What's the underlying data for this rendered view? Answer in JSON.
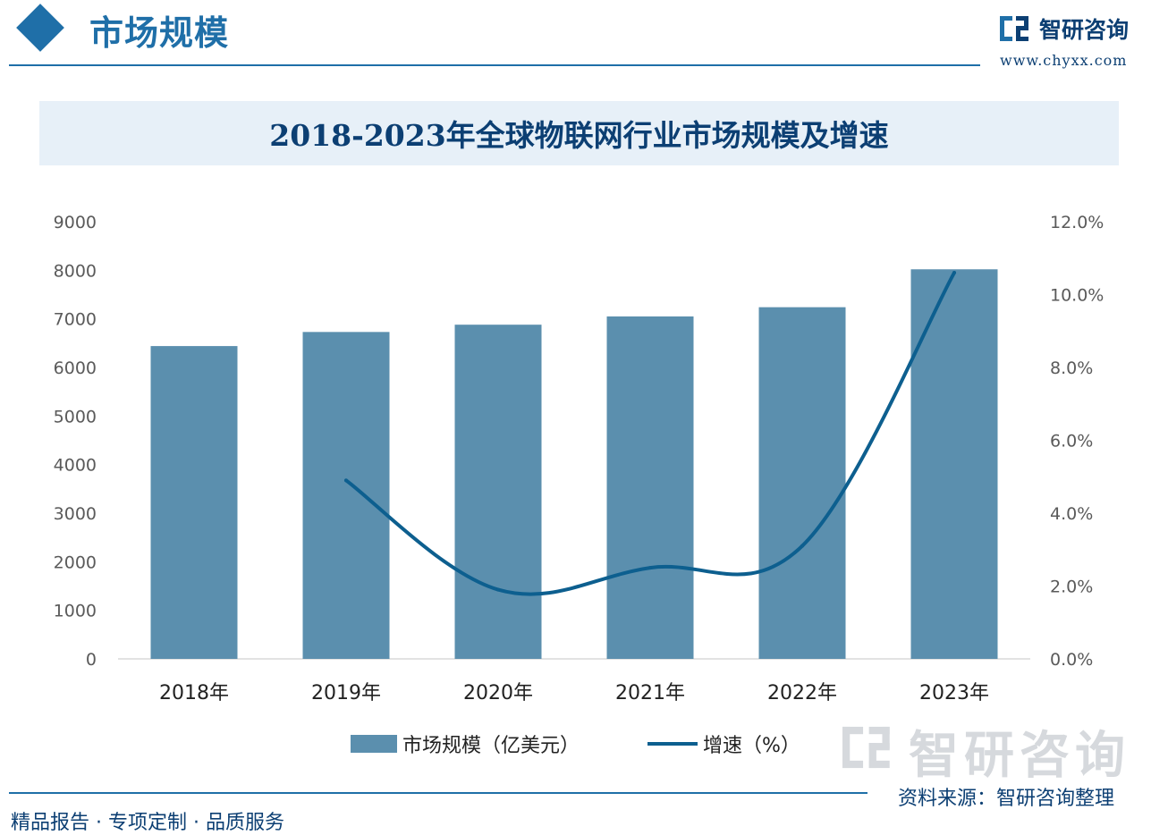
{
  "header": {
    "section_title": "市场规模",
    "brand_name": "智研咨询",
    "brand_url": "www.chyxx.com"
  },
  "watermark_brand": "智研咨询",
  "source_text": "资料来源：智研咨询整理",
  "footer_text": "精品报告 · 专项定制 · 品质服务",
  "colors": {
    "bar": "#5b8fae",
    "line": "#0d5f8f",
    "accent": "#1f6fa8",
    "navy": "#0c3f73"
  },
  "chart_data": {
    "type": "bar",
    "title": "2018-2023年全球物联网行业市场规模及增速",
    "categories": [
      "2018年",
      "2019年",
      "2020年",
      "2021年",
      "2022年",
      "2023年"
    ],
    "series": [
      {
        "name": "市场规模（亿美元）",
        "type": "bar",
        "axis": "left",
        "values": [
          6440,
          6730,
          6880,
          7050,
          7240,
          8020
        ]
      },
      {
        "name": "增速（%）",
        "type": "line",
        "axis": "right",
        "values": [
          null,
          4.9,
          1.9,
          2.5,
          3.1,
          10.6
        ]
      }
    ],
    "y_left": {
      "min": 0,
      "max": 9000,
      "ticks": [
        "0",
        "1000",
        "2000",
        "3000",
        "4000",
        "5000",
        "6000",
        "7000",
        "8000",
        "9000"
      ]
    },
    "y_right": {
      "min": 0,
      "max": 12,
      "ticks": [
        "0.0%",
        "2.0%",
        "4.0%",
        "6.0%",
        "8.0%",
        "10.0%",
        "12.0%"
      ]
    },
    "legend_position": "bottom",
    "grid": false
  }
}
